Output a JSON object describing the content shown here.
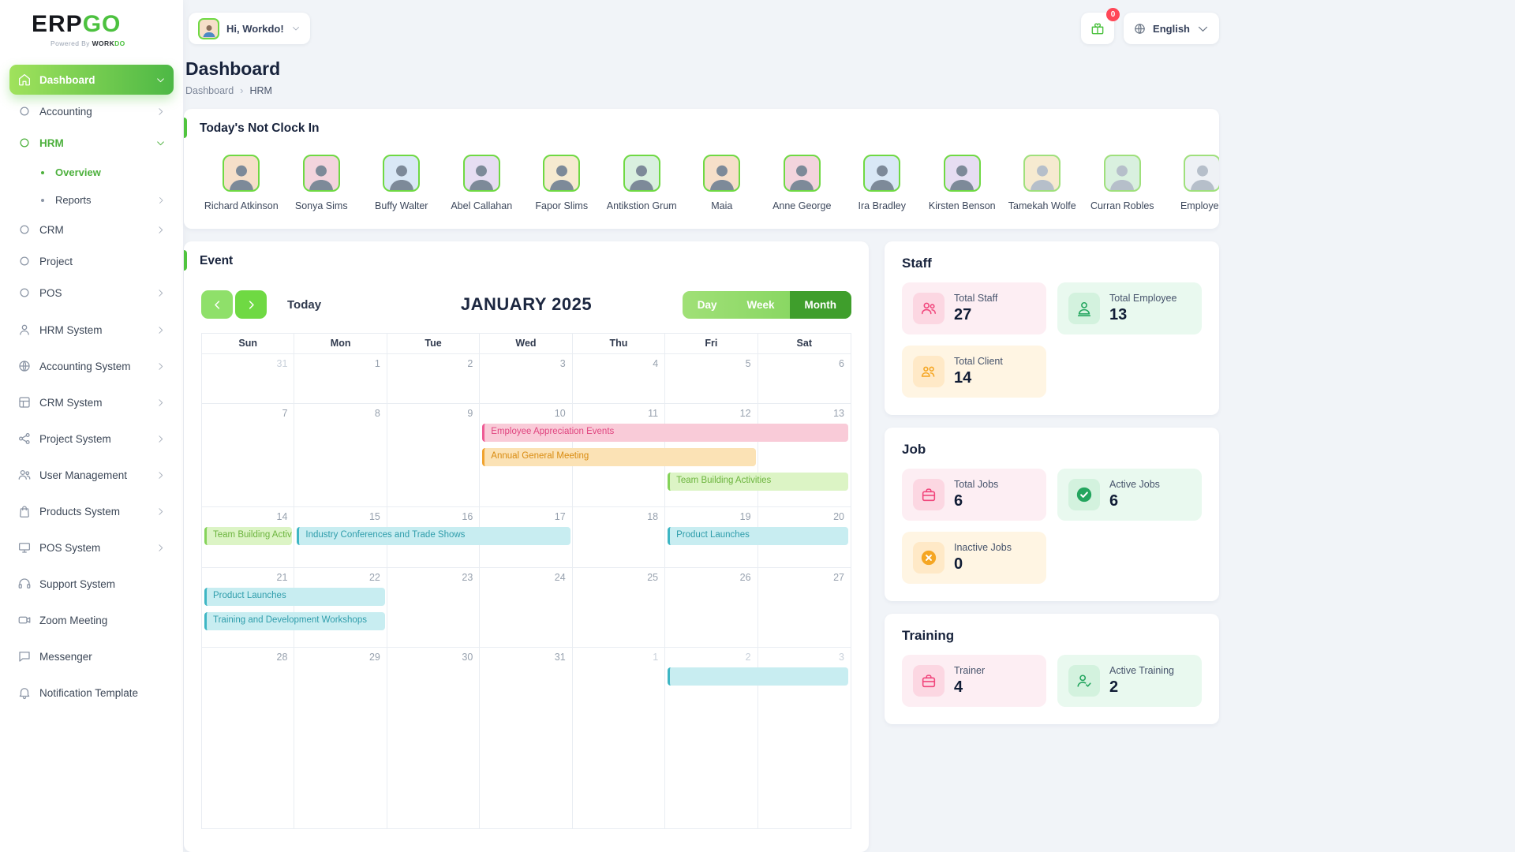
{
  "brand": {
    "name_black": "ERP",
    "name_green": "GO",
    "powered": "Powered By",
    "powered_brand_1": "WORK",
    "powered_brand_2": "DO"
  },
  "header": {
    "greeting": "Hi, Workdo!",
    "notification_count": "0",
    "language": "English"
  },
  "page": {
    "title": "Dashboard",
    "breadcrumb_root": "Dashboard",
    "breadcrumb_sep": "›",
    "breadcrumb_current": "HRM"
  },
  "sidebar": {
    "items": [
      {
        "label": "Dashboard",
        "icon": "home-icon",
        "chevron": "down",
        "variant": "active-primary"
      },
      {
        "label": "Accounting",
        "icon": "circle-icon",
        "chevron": "right"
      },
      {
        "label": "HRM",
        "icon": "circle-icon",
        "chevron": "down",
        "variant": "active-green",
        "children": [
          {
            "label": "Overview",
            "icon": "dot-icon",
            "variant": "active-green"
          },
          {
            "label": "Reports",
            "icon": "dot-icon",
            "chevron": "right"
          }
        ]
      },
      {
        "label": "CRM",
        "icon": "circle-icon",
        "chevron": "right"
      },
      {
        "label": "Project",
        "icon": "circle-icon"
      },
      {
        "label": "POS",
        "icon": "circle-icon",
        "chevron": "right"
      },
      {
        "label": "HRM System",
        "icon": "person-icon",
        "chevron": "right",
        "section": "systems"
      },
      {
        "label": "Accounting System",
        "icon": "globe-icon",
        "chevron": "right",
        "section": "systems"
      },
      {
        "label": "CRM System",
        "icon": "grid-icon",
        "chevron": "right",
        "section": "systems"
      },
      {
        "label": "Project System",
        "icon": "share-icon",
        "chevron": "right",
        "section": "systems"
      },
      {
        "label": "User Management",
        "icon": "users-icon",
        "chevron": "right",
        "section": "systems"
      },
      {
        "label": "Products System",
        "icon": "bag-icon",
        "chevron": "right",
        "section": "systems"
      },
      {
        "label": "POS System",
        "icon": "monitor-icon",
        "chevron": "right",
        "section": "systems"
      },
      {
        "label": "Support System",
        "icon": "headset-icon",
        "section": "systems"
      },
      {
        "label": "Zoom Meeting",
        "icon": "camera-icon",
        "section": "systems"
      },
      {
        "label": "Messenger",
        "icon": "chat-icon",
        "section": "systems"
      },
      {
        "label": "Notification Template",
        "icon": "bell-icon",
        "section": "systems"
      }
    ]
  },
  "clockin": {
    "title": "Today's Not Clock In",
    "employees": [
      {
        "name": "Richard Atkinson"
      },
      {
        "name": "Sonya Sims"
      },
      {
        "name": "Buffy Walter"
      },
      {
        "name": "Abel Callahan"
      },
      {
        "name": "Fapor Slims"
      },
      {
        "name": "Antikstion Grum"
      },
      {
        "name": "Maia"
      },
      {
        "name": "Anne George"
      },
      {
        "name": "Ira Bradley"
      },
      {
        "name": "Kirsten Benson"
      },
      {
        "name": "Tamekah Wolfe",
        "placeholder": true
      },
      {
        "name": "Curran Robles",
        "placeholder": true
      },
      {
        "name": "Employee",
        "placeholder": true
      }
    ]
  },
  "event": {
    "title": "Event",
    "today_label": "Today",
    "month_title": "JANUARY 2025",
    "views": [
      "Day",
      "Week",
      "Month"
    ],
    "active_view": "Month",
    "dow": [
      "Sun",
      "Mon",
      "Tue",
      "Wed",
      "Thu",
      "Fri",
      "Sat"
    ],
    "weeks": [
      {
        "days": [
          {
            "n": "31",
            "out": true
          },
          {
            "n": "1"
          },
          {
            "n": "2"
          },
          {
            "n": "3"
          },
          {
            "n": "4"
          },
          {
            "n": "5"
          },
          {
            "n": "6"
          }
        ],
        "events": []
      },
      {
        "days": [
          {
            "n": "7"
          },
          {
            "n": "8"
          },
          {
            "n": "9"
          },
          {
            "n": "10"
          },
          {
            "n": "11"
          },
          {
            "n": "12"
          },
          {
            "n": "13"
          }
        ],
        "events": [
          {
            "label": "Employee Appreciation Events",
            "color": "pink",
            "start": 4,
            "end": 7,
            "row": 1
          },
          {
            "label": "Annual General Meeting",
            "color": "orange",
            "start": 4,
            "end": 6,
            "row": 2
          },
          {
            "label": "Team Building Activities",
            "color": "green",
            "start": 6,
            "end": 7,
            "row": 3
          }
        ]
      },
      {
        "days": [
          {
            "n": "14"
          },
          {
            "n": "15"
          },
          {
            "n": "16"
          },
          {
            "n": "17"
          },
          {
            "n": "18"
          },
          {
            "n": "19"
          },
          {
            "n": "20"
          }
        ],
        "events": [
          {
            "label": "Team Building Activities",
            "color": "green",
            "start": 1,
            "end": 1,
            "row": 1
          },
          {
            "label": "Industry Conferences and Trade Shows",
            "color": "cyan",
            "start": 2,
            "end": 4,
            "row": 1
          },
          {
            "label": "Product Launches",
            "color": "cyan",
            "start": 6,
            "end": 7,
            "row": 1
          }
        ]
      },
      {
        "days": [
          {
            "n": "21"
          },
          {
            "n": "22"
          },
          {
            "n": "23"
          },
          {
            "n": "24"
          },
          {
            "n": "25"
          },
          {
            "n": "26"
          },
          {
            "n": "27"
          }
        ],
        "events": [
          {
            "label": "Product Launches",
            "color": "cyan",
            "start": 1,
            "end": 2,
            "row": 1
          },
          {
            "label": "Training and Development Workshops",
            "color": "cyan",
            "start": 1,
            "end": 2,
            "row": 2
          }
        ]
      },
      {
        "days": [
          {
            "n": "28"
          },
          {
            "n": "29"
          },
          {
            "n": "30"
          },
          {
            "n": "31"
          },
          {
            "n": "1",
            "out": true
          },
          {
            "n": "2",
            "out": true
          },
          {
            "n": "3",
            "out": true
          }
        ],
        "events": [
          {
            "label": "",
            "color": "cyan",
            "start": 6,
            "end": 7,
            "row": 1
          }
        ]
      }
    ]
  },
  "stats": [
    {
      "title": "Staff",
      "items": [
        {
          "label": "Total Staff",
          "value": "27",
          "tint": "pink",
          "icon": "users-icon"
        },
        {
          "label": "Total Employee",
          "value": "13",
          "tint": "green",
          "icon": "person-desk-icon"
        },
        {
          "label": "Total Client",
          "value": "14",
          "tint": "yellow",
          "icon": "clients-icon"
        }
      ]
    },
    {
      "title": "Job",
      "items": [
        {
          "label": "Total Jobs",
          "value": "6",
          "tint": "pink",
          "icon": "briefcase-icon"
        },
        {
          "label": "Active Jobs",
          "value": "6",
          "tint": "green",
          "icon": "check-circle-icon"
        },
        {
          "label": "Inactive Jobs",
          "value": "0",
          "tint": "yellow",
          "icon": "x-circle-icon"
        }
      ]
    },
    {
      "title": "Training",
      "items": [
        {
          "label": "Trainer",
          "value": "4",
          "tint": "pink",
          "icon": "briefcase-icon"
        },
        {
          "label": "Active Training",
          "value": "2",
          "tint": "green",
          "icon": "user-check-icon"
        }
      ]
    }
  ],
  "colors": {
    "primary_green": "#4cc13f",
    "active_view_green": "#3f9e2c",
    "badge_red": "#ff4757",
    "event_pink": "#f9cbd8",
    "event_orange": "#fbe2b5",
    "event_green": "#dcf4c5",
    "event_cyan": "#c8edf1",
    "stat_pink": "#fdeef3",
    "stat_green": "#e9f9ef",
    "stat_yellow": "#fff5e3"
  }
}
